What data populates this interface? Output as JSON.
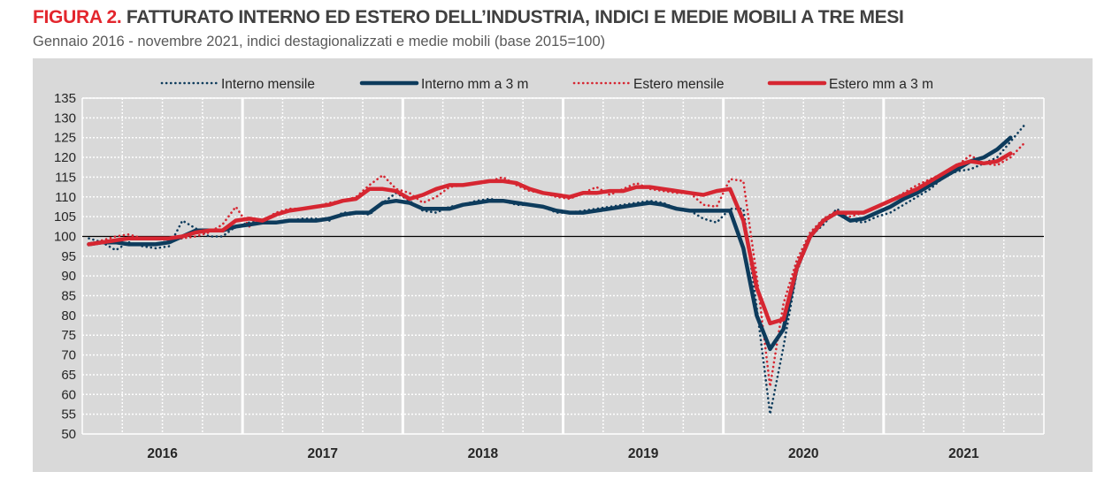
{
  "header": {
    "figure_label": "FIGURA 2.",
    "title": " FATTURATO INTERNO ED ESTERO DELL’INDUSTRIA, INDICI E MEDIE MOBILI A TRE MESI",
    "subtitle": "Gennaio 2016 - novembre 2021, indici destagionalizzati e medie mobili (base 2015=100)"
  },
  "chart_data": {
    "type": "line",
    "x_start": "2016-01",
    "x_end": "2021-11",
    "frequency": "monthly",
    "year_labels": [
      "2016",
      "2017",
      "2018",
      "2019",
      "2020",
      "2021"
    ],
    "ylim": [
      50,
      135
    ],
    "yticks": [
      "50",
      "55",
      "60",
      "65",
      "70",
      "75",
      "80",
      "85",
      "90",
      "95",
      "100",
      "105",
      "110",
      "115",
      "120",
      "125",
      "130",
      "135"
    ],
    "reference_line": 100,
    "grid": true,
    "legend_position": "top",
    "series": [
      {
        "name": "Interno mensile",
        "color": "#0d3b5c",
        "style": "dotted",
        "values": [
          99.5,
          98.5,
          96.5,
          98.5,
          97.5,
          97,
          97.5,
          104,
          102,
          100,
          100,
          102.5,
          103.5,
          104,
          103.5,
          104,
          104.5,
          104.5,
          104,
          106,
          106,
          105.5,
          108.5,
          111,
          109,
          106.5,
          106,
          107.5,
          108,
          109,
          109.5,
          109,
          108,
          108,
          107.5,
          106,
          106,
          106.5,
          107,
          107.5,
          108,
          108.5,
          109,
          108.5,
          107,
          106.5,
          104.5,
          103.5,
          107,
          107,
          82,
          55,
          72,
          91,
          100,
          103,
          107,
          104,
          103.5,
          105,
          106,
          108,
          110,
          112,
          115,
          116.5,
          117,
          118.5,
          120,
          124,
          128
        ]
      },
      {
        "name": "Interno mm a 3 m",
        "color": "#0d3b5c",
        "style": "solid",
        "values": [
          98,
          98.5,
          98.5,
          98,
          98,
          98,
          98.5,
          100,
          101.5,
          101.5,
          101.5,
          102.5,
          103,
          103.5,
          103.5,
          104,
          104,
          104,
          104.5,
          105.5,
          106,
          106,
          108.5,
          109,
          108.5,
          107,
          107,
          107,
          108,
          108.5,
          109,
          109,
          108.5,
          108,
          107.5,
          106.5,
          106,
          106,
          106.5,
          107,
          107.5,
          108,
          108.5,
          108,
          107,
          106.5,
          106.5,
          106.5,
          106.5,
          97,
          80,
          71.5,
          76.5,
          92,
          100,
          104,
          106,
          104,
          104.5,
          106,
          107.5,
          109.5,
          111,
          113,
          115,
          117,
          119,
          120,
          122,
          125,
          null
        ]
      },
      {
        "name": "Estero mensile",
        "color": "#d62631",
        "style": "dotted",
        "values": [
          98,
          99,
          100,
          100.5,
          99.5,
          99.5,
          99,
          99.5,
          100,
          101,
          103,
          107.5,
          102.5,
          104,
          106,
          107,
          107,
          107.5,
          108.5,
          109,
          110,
          113,
          115.5,
          112,
          111,
          108.5,
          110,
          112.5,
          113,
          113.5,
          114,
          115,
          113,
          111.5,
          111,
          110,
          109.5,
          111,
          112.5,
          110.5,
          112,
          113.5,
          112,
          111.5,
          111,
          111,
          108,
          107.5,
          114.5,
          114,
          90,
          62,
          83,
          94,
          101,
          104.5,
          106.5,
          105,
          106,
          107.5,
          109,
          111,
          113,
          114.5,
          116,
          118,
          120.5,
          118.5,
          118,
          120,
          123.5
        ]
      },
      {
        "name": "Estero mm a 3 m",
        "color": "#d62631",
        "style": "solid",
        "values": [
          98,
          98.5,
          99,
          99.5,
          99.5,
          99.5,
          99.5,
          100,
          101,
          101.5,
          101.5,
          104,
          104.5,
          104,
          105.5,
          106.5,
          107,
          107.5,
          108,
          109,
          109.5,
          112,
          112,
          111.5,
          109.5,
          110.5,
          112,
          113,
          113,
          113.5,
          114,
          114,
          113.5,
          112,
          111,
          110.5,
          110,
          111,
          111,
          111.5,
          111.5,
          112.5,
          112.5,
          112,
          111.5,
          111,
          110.5,
          111.5,
          112,
          104,
          87,
          78,
          79,
          92,
          100,
          104,
          106,
          106,
          106,
          107.5,
          109,
          110.5,
          112,
          114,
          116,
          118,
          119,
          118.5,
          119,
          121,
          null
        ]
      }
    ]
  }
}
